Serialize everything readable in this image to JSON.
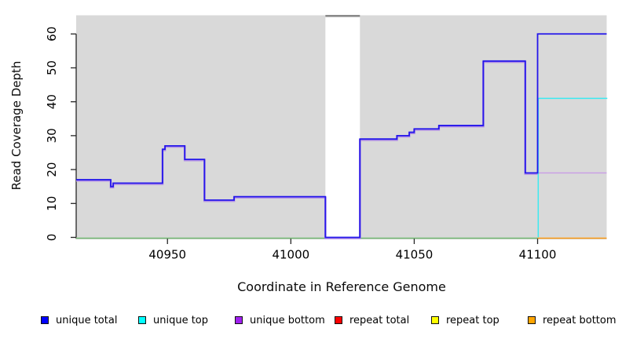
{
  "chart_data": {
    "type": "line",
    "subtype": "step-coverage",
    "title": "",
    "xlabel": "Coordinate in Reference Genome",
    "ylabel": "Read Coverage Depth",
    "xlim": [
      40913,
      41128
    ],
    "ylim": [
      0,
      65.5
    ],
    "xticks": [
      40950,
      41000,
      41050,
      41100
    ],
    "yticks": [
      0,
      10,
      20,
      30,
      40,
      50,
      60
    ],
    "grid": false,
    "background": "#D9D9D9",
    "gap_region": {
      "x0": 41014,
      "x1": 41028,
      "fill": "#FFFFFF",
      "top_line_color": "#8A8A8A"
    },
    "series": [
      {
        "name": "zero baseline",
        "color": "#76BB76",
        "points": [
          [
            40913,
            0
          ],
          [
            41100,
            0
          ]
        ]
      },
      {
        "name": "repeat bottom",
        "color": "#FF9D16",
        "points": [
          [
            41100,
            0
          ],
          [
            41128,
            0
          ]
        ]
      },
      {
        "name": "unique bottom",
        "color": "#C9A1E4",
        "points": [
          [
            41095,
            19
          ],
          [
            41128,
            19
          ]
        ]
      },
      {
        "name": "unique top",
        "color": "#3CE9F0",
        "points": [
          [
            41100,
            0
          ],
          [
            41100,
            41
          ],
          [
            41128,
            41
          ]
        ]
      },
      {
        "name": "unique total",
        "color": "#2417EA",
        "shadow_color": "#B18FE6",
        "points": [
          [
            40913,
            17
          ],
          [
            40927,
            17
          ],
          [
            40927,
            15
          ],
          [
            40928,
            15
          ],
          [
            40928,
            16
          ],
          [
            40948,
            16
          ],
          [
            40948,
            26
          ],
          [
            40949,
            26
          ],
          [
            40949,
            27
          ],
          [
            40957,
            27
          ],
          [
            40957,
            23
          ],
          [
            40965,
            23
          ],
          [
            40965,
            11
          ],
          [
            40977,
            11
          ],
          [
            40977,
            12
          ],
          [
            41014,
            12
          ],
          [
            41014,
            0
          ],
          [
            41028,
            0
          ],
          [
            41028,
            29
          ],
          [
            41043,
            29
          ],
          [
            41043,
            30
          ],
          [
            41048,
            30
          ],
          [
            41048,
            31
          ],
          [
            41050,
            31
          ],
          [
            41050,
            32
          ],
          [
            41060,
            32
          ],
          [
            41060,
            33
          ],
          [
            41078,
            33
          ],
          [
            41078,
            52
          ],
          [
            41095,
            52
          ],
          [
            41095,
            19
          ],
          [
            41100,
            19
          ],
          [
            41100,
            60
          ],
          [
            41128,
            60
          ]
        ]
      }
    ],
    "legend_position": "bottom"
  },
  "legend": {
    "items": [
      {
        "label": "unique total",
        "color": "#0000FF"
      },
      {
        "label": "unique top",
        "color": "#00FFFF"
      },
      {
        "label": "unique bottom",
        "color": "#A020F0"
      },
      {
        "label": "repeat total",
        "color": "#FF0000"
      },
      {
        "label": "repeat top",
        "color": "#FFFF00"
      },
      {
        "label": "repeat bottom",
        "color": "#FFA500"
      }
    ]
  }
}
